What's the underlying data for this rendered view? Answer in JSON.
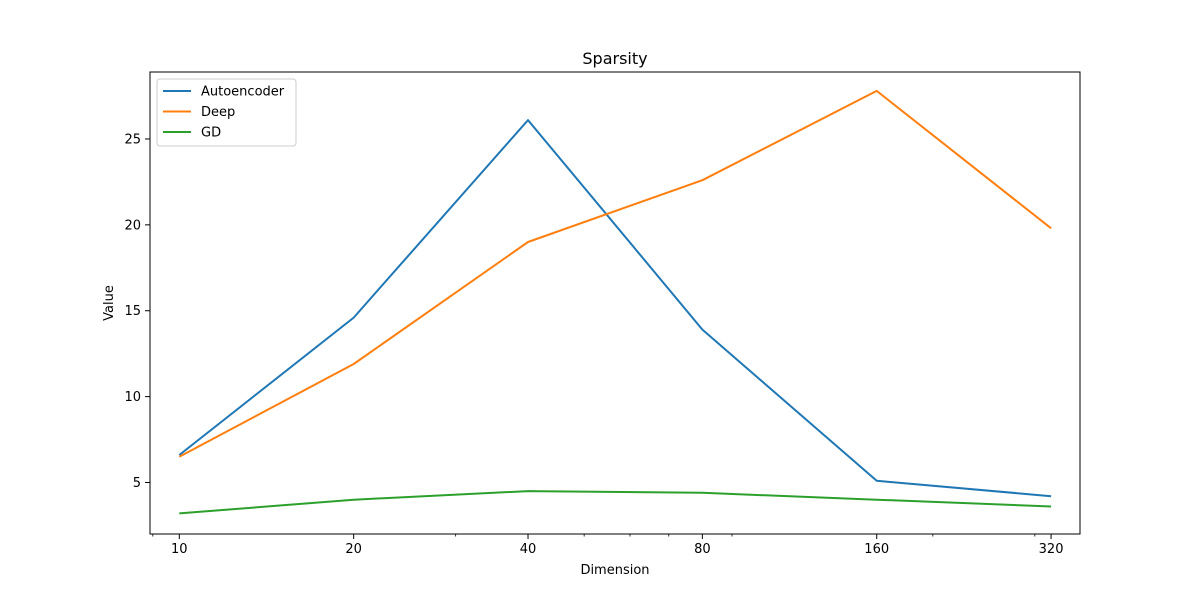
{
  "chart_data": {
    "type": "line",
    "title": "Sparsity",
    "xlabel": "Dimension",
    "ylabel": "Value",
    "x_scale": "log2",
    "x": [
      10,
      20,
      40,
      80,
      160,
      320
    ],
    "x_tick_labels": [
      "10",
      "20",
      "40",
      "80",
      "160",
      "320"
    ],
    "xlim": [
      8.9,
      359
    ],
    "ylim": [
      2.0,
      28.9
    ],
    "y_ticks": [
      5,
      10,
      15,
      20,
      25
    ],
    "y_tick_labels": [
      "5",
      "10",
      "15",
      "20",
      "25"
    ],
    "grid": false,
    "legend_position": "top-left",
    "series": [
      {
        "name": "Autoencoder",
        "color": "#1f77b4",
        "values": [
          6.6,
          14.6,
          26.1,
          13.9,
          5.1,
          4.2
        ]
      },
      {
        "name": "Deep",
        "color": "#ff7f0e",
        "values": [
          6.5,
          11.9,
          19.0,
          22.6,
          27.8,
          19.8
        ]
      },
      {
        "name": "GD",
        "color": "#2ca02c",
        "values": [
          3.2,
          4.0,
          4.5,
          4.4,
          4.0,
          3.6
        ]
      }
    ]
  }
}
